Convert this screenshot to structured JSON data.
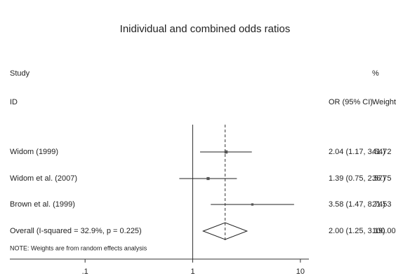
{
  "chart_data": {
    "type": "forest",
    "title": "Inidividual and combined odds ratios",
    "study_header": [
      "Study",
      "ID"
    ],
    "or_header": "OR (95% CI)",
    "weight_header": [
      "%",
      "Weight"
    ],
    "categories": [
      "Widom (1999)",
      "Widom et al. (2007)",
      "Brown et al. (1999)"
    ],
    "values": [
      2.04,
      1.39,
      3.58
    ],
    "lower": [
      1.17,
      0.75,
      1.47
    ],
    "upper": [
      3.54,
      2.57,
      8.74
    ],
    "value_labels": [
      "2.04 (1.17, 3.54)",
      "1.39 (0.75, 2.57)",
      "3.58 (1.47, 8.74)"
    ],
    "weights": [
      41.72,
      36.75,
      21.53
    ],
    "overall": {
      "label": "Overall  (I-squared = 32.9%, p = 0.225)",
      "value": 2.0,
      "lower": 1.25,
      "upper": 3.19,
      "value_label": "2.00 (1.25, 3.19)",
      "weight": 100,
      "weight_label": "100.00"
    },
    "note": "NOTE: Weights are from random effects analysis",
    "log_x": true,
    "xlim": [
      0.02,
      12
    ],
    "xticks": [
      {
        "value": 0.1,
        "label": ".1"
      },
      1,
      10
    ]
  }
}
